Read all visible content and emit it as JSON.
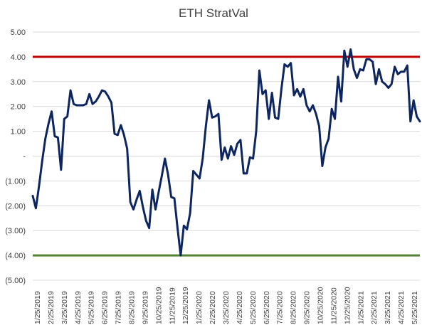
{
  "chart_data": {
    "type": "line",
    "title": "ETH StratVal",
    "xlabel": "",
    "ylabel": "",
    "ylim": [
      -5,
      5
    ],
    "y_ticks": [
      {
        "value": 5,
        "label": "5.00"
      },
      {
        "value": 4,
        "label": "4.00"
      },
      {
        "value": 3,
        "label": "3.00"
      },
      {
        "value": 2,
        "label": "2.00"
      },
      {
        "value": 1,
        "label": "1.00"
      },
      {
        "value": 0,
        "label": "-"
      },
      {
        "value": -1,
        "label": "(1.00)"
      },
      {
        "value": -2,
        "label": "(2.00)"
      },
      {
        "value": -3,
        "label": "(3.00)"
      },
      {
        "value": -4,
        "label": "(4.00)"
      },
      {
        "value": -5,
        "label": "(5.00)"
      }
    ],
    "x_tick_labels": [
      "1/25/2019",
      "2/25/2019",
      "3/25/2019",
      "4/25/2019",
      "5/25/2019",
      "6/25/2019",
      "7/25/2019",
      "8/25/2019",
      "9/25/2019",
      "10/25/2019",
      "11/25/2019",
      "12/25/2019",
      "1/25/2020",
      "2/25/2020",
      "3/25/2020",
      "4/25/2020",
      "5/25/2020",
      "6/25/2020",
      "7/25/2020",
      "8/25/2020",
      "9/25/2020",
      "10/25/2020",
      "11/25/2020",
      "12/25/2020",
      "1/25/2021",
      "2/25/2021",
      "3/25/2021",
      "4/25/2021",
      "5/25/2021"
    ],
    "grid": true,
    "reference_lines": [
      {
        "value": 4,
        "color": "#c00000"
      },
      {
        "value": -4,
        "color": "#548235"
      }
    ],
    "series_color": "#0d2660",
    "series": [
      {
        "values": [
          -1.6,
          -2.1,
          -1.2,
          -0.2,
          0.7,
          1.3,
          1.8,
          0.8,
          0.75,
          -0.55,
          1.5,
          1.6,
          2.65,
          2.1,
          2.05,
          2.05,
          2.05,
          2.1,
          2.5,
          2.1,
          2.2,
          2.4,
          2.65,
          2.6,
          2.4,
          2.15,
          0.9,
          0.85,
          1.25,
          0.85,
          0.3,
          -1.85,
          -2.15,
          -1.75,
          -1.4,
          -2.05,
          -2.6,
          -2.9,
          -1.35,
          -2.15,
          -1.45,
          -0.8,
          -0.1,
          -0.75,
          -1.65,
          -1.7,
          -2.9,
          -4.0,
          -2.8,
          -2.95,
          -2.3,
          -0.6,
          -0.75,
          -0.9,
          -0.1,
          1.2,
          2.25,
          1.55,
          1.6,
          1.7,
          -0.15,
          0.35,
          -0.1,
          0.4,
          0.05,
          0.5,
          0.65,
          -0.7,
          -0.7,
          -0.05,
          -0.1,
          1.0,
          3.45,
          2.5,
          2.65,
          1.5,
          2.55,
          1.55,
          1.5,
          2.7,
          3.7,
          3.6,
          3.75,
          2.45,
          2.7,
          2.4,
          2.7,
          2.05,
          1.8,
          2.05,
          1.7,
          1.2,
          -0.4,
          0.35,
          0.7,
          1.9,
          1.5,
          3.2,
          2.2,
          4.25,
          3.6,
          4.3,
          3.5,
          3.15,
          3.5,
          3.45,
          3.9,
          3.9,
          3.8,
          2.9,
          3.5,
          3.0,
          2.9,
          2.75,
          2.9,
          3.6,
          3.3,
          3.4,
          3.4,
          3.65,
          1.4,
          2.25,
          1.6,
          1.4
        ]
      }
    ]
  }
}
